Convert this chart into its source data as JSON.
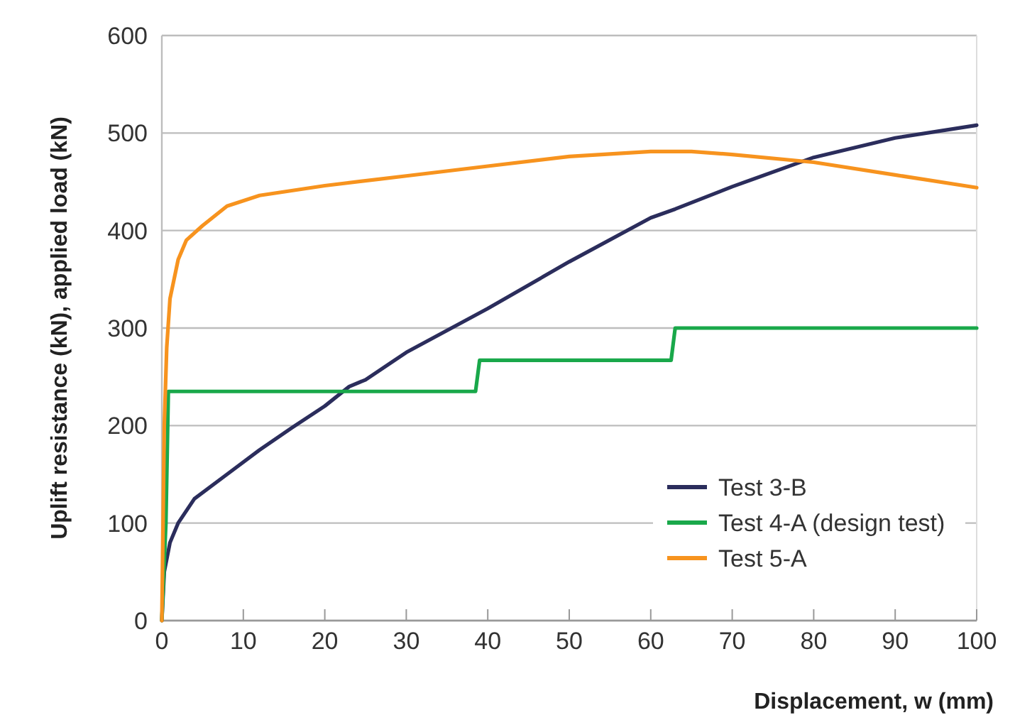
{
  "chart_data": {
    "type": "line",
    "xlabel": "Displacement, w (mm)",
    "ylabel": "Uplift resistance (kN), applied load (kN)",
    "xlim": [
      0,
      100
    ],
    "xticks": [
      0,
      10,
      20,
      30,
      40,
      50,
      60,
      70,
      80,
      90,
      100
    ],
    "ylim": [
      0,
      600
    ],
    "yticks": [
      0,
      100,
      200,
      300,
      400,
      500,
      600
    ],
    "grid": "y",
    "legend": "bottom right",
    "marker": "none",
    "line_style": "solid",
    "series": [
      {
        "name": "Test 3-B",
        "color": "#2b2d5c",
        "x": [
          0,
          0.3,
          1,
          2,
          4,
          8,
          12,
          16,
          20,
          23,
          25,
          30,
          40,
          50,
          60,
          63,
          70,
          80,
          90,
          100
        ],
        "values": [
          0,
          50,
          80,
          100,
          125,
          150,
          175,
          198,
          220,
          240,
          247,
          275,
          320,
          368,
          413,
          422,
          445,
          475,
          495,
          508
        ]
      },
      {
        "name": "Test 4-A (design test)",
        "color": "#19a84a",
        "x": [
          0,
          0.5,
          0.8,
          38.5,
          39,
          62.5,
          63,
          100
        ],
        "values": [
          0,
          100,
          235,
          235,
          267,
          267,
          300,
          300
        ]
      },
      {
        "name": "Test 5-A",
        "color": "#f7931e",
        "x": [
          0,
          0.3,
          0.6,
          1,
          2,
          3,
          5,
          8,
          12,
          20,
          30,
          40,
          50,
          60,
          65,
          70,
          80,
          90,
          100
        ],
        "values": [
          0,
          200,
          280,
          330,
          370,
          390,
          405,
          425,
          436,
          446,
          456,
          466,
          476,
          481,
          481,
          478,
          470,
          457,
          444
        ]
      }
    ]
  }
}
